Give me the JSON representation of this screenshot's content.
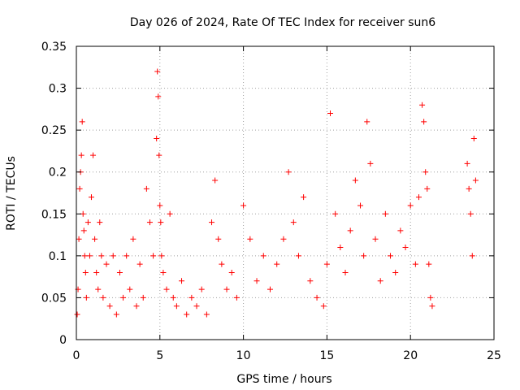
{
  "chart_data": {
    "type": "scatter",
    "title": "Day 026 of 2024, Rate Of TEC Index for receiver sun6",
    "xlabel": "GPS time / hours",
    "ylabel": "ROTI / TECUs",
    "xlim": [
      0,
      25
    ],
    "ylim": [
      0,
      0.35
    ],
    "x_ticks": [
      "0",
      "5",
      "10",
      "15",
      "20",
      "25"
    ],
    "y_ticks": [
      "0",
      "0.05",
      "0.1",
      "0.15",
      "0.2",
      "0.25",
      "0.3",
      "0.35"
    ],
    "grid": true,
    "marker": "+",
    "color": "#ff0000",
    "series": [
      {
        "x": [
          0.05,
          0.1,
          0.15,
          0.2,
          0.25,
          0.3,
          0.35,
          0.4,
          0.45,
          0.5,
          0.55,
          0.6,
          0.7,
          0.8,
          0.9,
          1.0,
          1.1,
          1.2,
          1.3,
          1.4,
          1.5,
          1.6,
          1.8,
          2.0,
          2.2,
          2.4,
          2.6,
          2.8,
          3.0,
          3.2,
          3.4,
          3.6,
          3.8,
          4.0,
          4.2,
          4.4,
          4.6,
          4.8,
          4.85,
          4.9,
          4.95,
          5.0,
          5.05,
          5.1,
          5.2,
          5.4,
          5.6,
          5.8,
          6.0,
          6.3,
          6.6,
          6.9,
          7.2,
          7.5,
          7.8,
          8.1,
          8.3,
          8.5,
          8.7,
          9.0,
          9.3,
          9.6,
          10.0,
          10.4,
          10.8,
          11.2,
          11.6,
          12.0,
          12.4,
          12.7,
          13.0,
          13.3,
          13.6,
          14.0,
          14.4,
          14.8,
          15.0,
          15.2,
          15.5,
          15.8,
          16.1,
          16.4,
          16.7,
          17.0,
          17.2,
          17.4,
          17.6,
          17.9,
          18.2,
          18.5,
          18.8,
          19.1,
          19.4,
          19.7,
          20.0,
          20.3,
          20.5,
          20.7,
          20.8,
          20.9,
          21.0,
          21.1,
          21.2,
          21.3,
          23.4,
          23.5,
          23.6,
          23.7,
          23.8,
          23.9
        ],
        "y": [
          0.03,
          0.06,
          0.12,
          0.18,
          0.2,
          0.22,
          0.26,
          0.15,
          0.13,
          0.1,
          0.08,
          0.05,
          0.14,
          0.1,
          0.17,
          0.22,
          0.12,
          0.08,
          0.06,
          0.14,
          0.1,
          0.05,
          0.09,
          0.04,
          0.1,
          0.03,
          0.08,
          0.05,
          0.1,
          0.06,
          0.12,
          0.04,
          0.09,
          0.05,
          0.18,
          0.14,
          0.1,
          0.24,
          0.32,
          0.29,
          0.22,
          0.16,
          0.14,
          0.1,
          0.08,
          0.06,
          0.15,
          0.05,
          0.04,
          0.07,
          0.03,
          0.05,
          0.04,
          0.06,
          0.03,
          0.14,
          0.19,
          0.12,
          0.09,
          0.06,
          0.08,
          0.05,
          0.16,
          0.12,
          0.07,
          0.1,
          0.06,
          0.09,
          0.12,
          0.2,
          0.14,
          0.1,
          0.17,
          0.07,
          0.05,
          0.04,
          0.09,
          0.27,
          0.15,
          0.11,
          0.08,
          0.13,
          0.19,
          0.16,
          0.1,
          0.26,
          0.21,
          0.12,
          0.07,
          0.15,
          0.1,
          0.08,
          0.13,
          0.11,
          0.16,
          0.09,
          0.17,
          0.28,
          0.26,
          0.2,
          0.18,
          0.09,
          0.05,
          0.04,
          0.21,
          0.18,
          0.15,
          0.1,
          0.24,
          0.19
        ]
      }
    ]
  }
}
